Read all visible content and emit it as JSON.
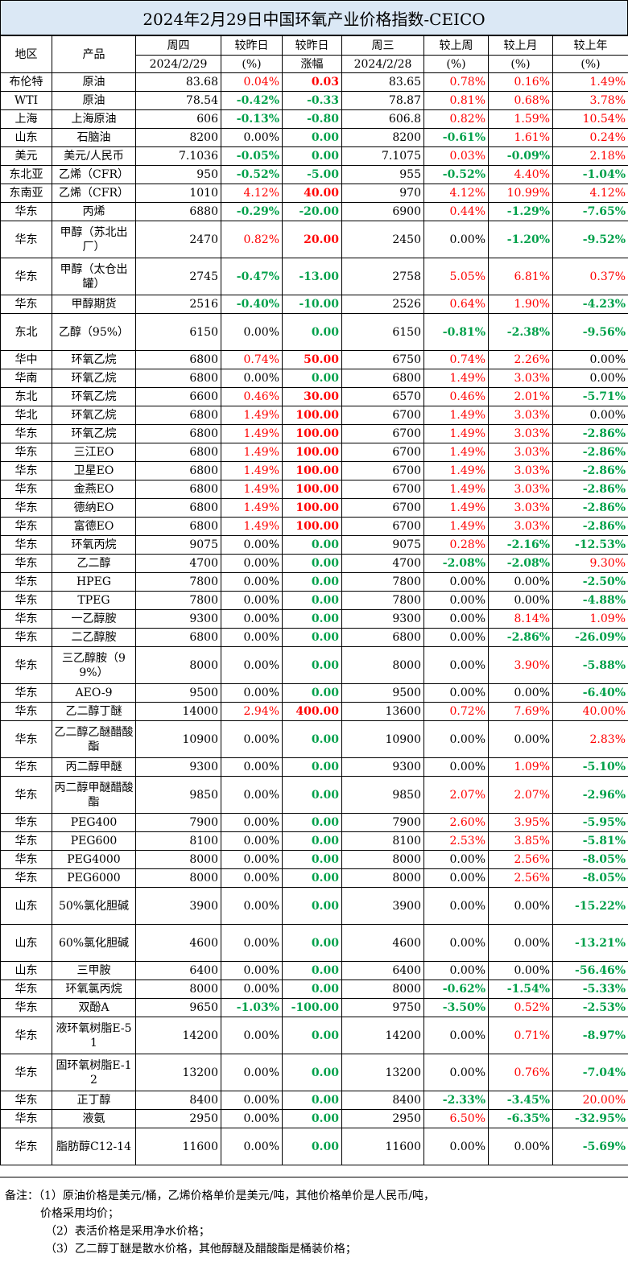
{
  "title": "2024年2月29日中国环氧产业价格指数-CEICO",
  "header": {
    "region": "地区",
    "product": "产品",
    "thu": "周四",
    "thu_date": "2024/2/29",
    "vs_yest_pct": "较昨日",
    "vs_yest_pct_unit": "(%)",
    "vs_yest_chg": "较昨日",
    "vs_yest_chg_unit": "涨幅",
    "wed": "周三",
    "wed_date": "2024/2/28",
    "vs_week": "较上周",
    "vs_week_unit": "(%)",
    "vs_month": "较上月",
    "vs_month_unit": "(%)",
    "vs_year": "较上年",
    "vs_year_unit": "(%)"
  },
  "rows": [
    {
      "region": "布伦特",
      "product": "原油",
      "thu": "83.68",
      "dpct": "0.04%",
      "dchg": "0.03",
      "wed": "83.65",
      "week": "0.78%",
      "month": "0.16%",
      "year": "1.49%"
    },
    {
      "region": "WTI",
      "product": "原油",
      "thu": "78.54",
      "dpct": "-0.42%",
      "dchg": "-0.33",
      "wed": "78.87",
      "week": "0.81%",
      "month": "0.68%",
      "year": "3.78%"
    },
    {
      "region": "上海",
      "product": "上海原油",
      "thu": "606",
      "dpct": "-0.13%",
      "dchg": "-0.80",
      "wed": "606.8",
      "week": "0.82%",
      "month": "1.59%",
      "year": "10.54%"
    },
    {
      "region": "山东",
      "product": "石脑油",
      "thu": "8200",
      "dpct": "0.00%",
      "dchg": "0.00",
      "wed": "8200",
      "week": "-0.61%",
      "month": "1.61%",
      "year": "0.24%"
    },
    {
      "region": "美元",
      "product": "美元/人民币",
      "thu": "7.1036",
      "dpct": "-0.05%",
      "dchg": "0.00",
      "wed": "7.1075",
      "week": "0.03%",
      "month": "-0.09%",
      "year": "2.18%"
    },
    {
      "region": "东北亚",
      "product": "乙烯（CFR）",
      "thu": "950",
      "dpct": "-0.52%",
      "dchg": "-5.00",
      "wed": "955",
      "week": "-0.52%",
      "month": "4.40%",
      "year": "-1.04%"
    },
    {
      "region": "东南亚",
      "product": "乙烯（CFR）",
      "thu": "1010",
      "dpct": "4.12%",
      "dchg": "40.00",
      "wed": "970",
      "week": "4.12%",
      "month": "10.99%",
      "year": "4.12%"
    },
    {
      "region": "华东",
      "product": "丙烯",
      "thu": "6880",
      "dpct": "-0.29%",
      "dchg": "-20.00",
      "wed": "6900",
      "week": "0.44%",
      "month": "-1.29%",
      "year": "-7.65%"
    },
    {
      "region": "华东",
      "product": "甲醇（苏北出厂）",
      "thu": "2470",
      "dpct": "0.82%",
      "dchg": "20.00",
      "wed": "2450",
      "week": "0.00%",
      "month": "-1.20%",
      "year": "-9.52%"
    },
    {
      "region": "华东",
      "product": "甲醇（太仓出罐）",
      "thu": "2745",
      "dpct": "-0.47%",
      "dchg": "-13.00",
      "wed": "2758",
      "week": "5.05%",
      "month": "6.81%",
      "year": "0.37%"
    },
    {
      "region": "华东",
      "product": "甲醇期货",
      "thu": "2516",
      "dpct": "-0.40%",
      "dchg": "-10.00",
      "wed": "2526",
      "week": "0.64%",
      "month": "1.90%",
      "year": "-4.23%"
    },
    {
      "region": "东北",
      "product": "乙醇（95%）",
      "thu": "6150",
      "dpct": "0.00%",
      "dchg": "0.00",
      "wed": "6150",
      "week": "-0.81%",
      "month": "-2.38%",
      "year": "-9.56%"
    },
    {
      "region": "华中",
      "product": "环氧乙烷",
      "thu": "6800",
      "dpct": "0.74%",
      "dchg": "50.00",
      "wed": "6750",
      "week": "0.74%",
      "month": "2.26%",
      "year": "0.00%"
    },
    {
      "region": "华南",
      "product": "环氧乙烷",
      "thu": "6800",
      "dpct": "0.00%",
      "dchg": "0.00",
      "wed": "6800",
      "week": "1.49%",
      "month": "3.03%",
      "year": "0.00%"
    },
    {
      "region": "东北",
      "product": "环氧乙烷",
      "thu": "6600",
      "dpct": "0.46%",
      "dchg": "30.00",
      "wed": "6570",
      "week": "0.46%",
      "month": "2.01%",
      "year": "-5.71%"
    },
    {
      "region": "华北",
      "product": "环氧乙烷",
      "thu": "6800",
      "dpct": "1.49%",
      "dchg": "100.00",
      "wed": "6700",
      "week": "1.49%",
      "month": "3.03%",
      "year": "0.00%"
    },
    {
      "region": "华东",
      "product": "环氧乙烷",
      "thu": "6800",
      "dpct": "1.49%",
      "dchg": "100.00",
      "wed": "6700",
      "week": "1.49%",
      "month": "3.03%",
      "year": "-2.86%"
    },
    {
      "region": "华东",
      "product": "三江EO",
      "thu": "6800",
      "dpct": "1.49%",
      "dchg": "100.00",
      "wed": "6700",
      "week": "1.49%",
      "month": "3.03%",
      "year": "-2.86%"
    },
    {
      "region": "华东",
      "product": "卫星EO",
      "thu": "6800",
      "dpct": "1.49%",
      "dchg": "100.00",
      "wed": "6700",
      "week": "1.49%",
      "month": "3.03%",
      "year": "-2.86%"
    },
    {
      "region": "华东",
      "product": "金燕EO",
      "thu": "6800",
      "dpct": "1.49%",
      "dchg": "100.00",
      "wed": "6700",
      "week": "1.49%",
      "month": "3.03%",
      "year": "-2.86%"
    },
    {
      "region": "华东",
      "product": "德纳EO",
      "thu": "6800",
      "dpct": "1.49%",
      "dchg": "100.00",
      "wed": "6700",
      "week": "1.49%",
      "month": "3.03%",
      "year": "-2.86%"
    },
    {
      "region": "华东",
      "product": "富德EO",
      "thu": "6800",
      "dpct": "1.49%",
      "dchg": "100.00",
      "wed": "6700",
      "week": "1.49%",
      "month": "3.03%",
      "year": "-2.86%"
    },
    {
      "region": "华东",
      "product": "环氧丙烷",
      "thu": "9075",
      "dpct": "0.00%",
      "dchg": "0.00",
      "wed": "9075",
      "week": "0.28%",
      "month": "-2.16%",
      "year": "-12.53%"
    },
    {
      "region": "华东",
      "product": "乙二醇",
      "thu": "4700",
      "dpct": "0.00%",
      "dchg": "0.00",
      "wed": "4700",
      "week": "-2.08%",
      "month": "-2.08%",
      "year": "9.30%"
    },
    {
      "region": "华东",
      "product": "HPEG",
      "thu": "7800",
      "dpct": "0.00%",
      "dchg": "0.00",
      "wed": "7800",
      "week": "0.00%",
      "month": "0.00%",
      "year": "-2.50%"
    },
    {
      "region": "华东",
      "product": "TPEG",
      "thu": "7800",
      "dpct": "0.00%",
      "dchg": "0.00",
      "wed": "7800",
      "week": "0.00%",
      "month": "0.00%",
      "year": "-4.88%"
    },
    {
      "region": "华东",
      "product": "一乙醇胺",
      "thu": "9300",
      "dpct": "0.00%",
      "dchg": "0.00",
      "wed": "9300",
      "week": "0.00%",
      "month": "8.14%",
      "year": "1.09%"
    },
    {
      "region": "华东",
      "product": "二乙醇胺",
      "thu": "6800",
      "dpct": "0.00%",
      "dchg": "0.00",
      "wed": "6800",
      "week": "0.00%",
      "month": "-2.86%",
      "year": "-26.09%"
    },
    {
      "region": "华东",
      "product": "三乙醇胺（99%）",
      "thu": "8000",
      "dpct": "0.00%",
      "dchg": "0.00",
      "wed": "8000",
      "week": "0.00%",
      "month": "3.90%",
      "year": "-5.88%"
    },
    {
      "region": "华东",
      "product": "AEO-9",
      "thu": "9500",
      "dpct": "0.00%",
      "dchg": "0.00",
      "wed": "9500",
      "week": "0.00%",
      "month": "0.00%",
      "year": "-6.40%"
    },
    {
      "region": "华东",
      "product": "乙二醇丁醚",
      "thu": "14000",
      "dpct": "2.94%",
      "dchg": "400.00",
      "wed": "13600",
      "week": "0.72%",
      "month": "7.69%",
      "year": "40.00%"
    },
    {
      "region": "华东",
      "product": "乙二醇乙醚醋酸酯",
      "thu": "10900",
      "dpct": "0.00%",
      "dchg": "0.00",
      "wed": "10900",
      "week": "0.00%",
      "month": "0.00%",
      "year": "2.83%"
    },
    {
      "region": "华东",
      "product": "丙二醇甲醚",
      "thu": "9300",
      "dpct": "0.00%",
      "dchg": "0.00",
      "wed": "9300",
      "week": "0.00%",
      "month": "1.09%",
      "year": "-5.10%"
    },
    {
      "region": "华东",
      "product": "丙二醇甲醚醋酸酯",
      "thu": "9850",
      "dpct": "0.00%",
      "dchg": "0.00",
      "wed": "9850",
      "week": "2.07%",
      "month": "2.07%",
      "year": "-2.96%"
    },
    {
      "region": "华东",
      "product": "PEG400",
      "thu": "7900",
      "dpct": "0.00%",
      "dchg": "0.00",
      "wed": "7900",
      "week": "2.60%",
      "month": "3.95%",
      "year": "-5.95%"
    },
    {
      "region": "华东",
      "product": "PEG600",
      "thu": "8100",
      "dpct": "0.00%",
      "dchg": "0.00",
      "wed": "8100",
      "week": "2.53%",
      "month": "3.85%",
      "year": "-5.81%"
    },
    {
      "region": "华东",
      "product": "PEG4000",
      "thu": "8000",
      "dpct": "0.00%",
      "dchg": "0.00",
      "wed": "8000",
      "week": "0.00%",
      "month": "2.56%",
      "year": "-8.05%"
    },
    {
      "region": "华东",
      "product": "PEG6000",
      "thu": "8000",
      "dpct": "0.00%",
      "dchg": "0.00",
      "wed": "8000",
      "week": "0.00%",
      "month": "2.56%",
      "year": "-8.05%"
    },
    {
      "region": "山东",
      "product": "50%氯化胆碱",
      "thu": "3900",
      "dpct": "0.00%",
      "dchg": "0.00",
      "wed": "3900",
      "week": "0.00%",
      "month": "0.00%",
      "year": "-15.22%"
    },
    {
      "region": "山东",
      "product": "60%氯化胆碱",
      "thu": "4600",
      "dpct": "0.00%",
      "dchg": "0.00",
      "wed": "4600",
      "week": "0.00%",
      "month": "0.00%",
      "year": "-13.21%"
    },
    {
      "region": "山东",
      "product": "三甲胺",
      "thu": "6400",
      "dpct": "0.00%",
      "dchg": "0.00",
      "wed": "6400",
      "week": "0.00%",
      "month": "0.00%",
      "year": "-56.46%"
    },
    {
      "region": "华东",
      "product": "环氧氯丙烷",
      "thu": "8000",
      "dpct": "0.00%",
      "dchg": "0.00",
      "wed": "8000",
      "week": "-0.62%",
      "month": "-1.54%",
      "year": "-5.33%"
    },
    {
      "region": "华东",
      "product": "双酚A",
      "thu": "9650",
      "dpct": "-1.03%",
      "dchg": "-100.00",
      "wed": "9750",
      "week": "-3.50%",
      "month": "0.52%",
      "year": "-2.53%"
    },
    {
      "region": "华东",
      "product": "液环氧树脂E-51",
      "thu": "14200",
      "dpct": "0.00%",
      "dchg": "0.00",
      "wed": "14200",
      "week": "0.00%",
      "month": "0.71%",
      "year": "-8.97%"
    },
    {
      "region": "华东",
      "product": "固环氧树脂E-12",
      "thu": "13200",
      "dpct": "0.00%",
      "dchg": "0.00",
      "wed": "13200",
      "week": "0.00%",
      "month": "0.76%",
      "year": "-7.04%"
    },
    {
      "region": "华东",
      "product": "正丁醇",
      "thu": "8400",
      "dpct": "0.00%",
      "dchg": "0.00",
      "wed": "8400",
      "week": "-2.33%",
      "month": "-3.45%",
      "year": "20.00%"
    },
    {
      "region": "华东",
      "product": "液氨",
      "thu": "2950",
      "dpct": "0.00%",
      "dchg": "0.00",
      "wed": "2950",
      "week": "6.50%",
      "month": "-6.35%",
      "year": "-32.95%"
    },
    {
      "region": "华东",
      "product": "脂肪醇C12-14",
      "thu": "11600",
      "dpct": "0.00%",
      "dchg": "0.00",
      "wed": "11600",
      "week": "0.00%",
      "month": "0.00%",
      "year": "-5.69%"
    }
  ],
  "notes": {
    "line1": "备注：（1）原油价格是美元/桶，乙烯价格单价是美元/吨，其他价格单价是人民币/吨，",
    "line1b": "价格采用均价；",
    "line2": "（2）表活价格是采用净水价格；",
    "line3": "（3）乙二醇丁醚是散水价格，其他醇醚及醋酸酯是桶装价格；"
  },
  "colors": {
    "title_bg": "#dbe8f5",
    "up": "#ff0000",
    "down": "#00a04a"
  }
}
